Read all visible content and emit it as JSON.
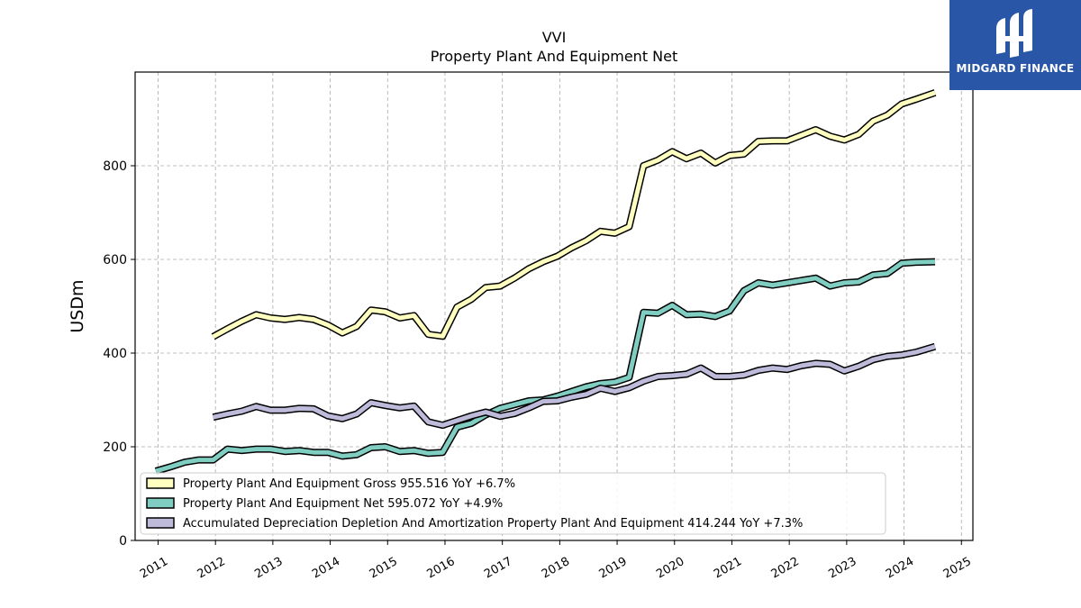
{
  "chart_data": {
    "type": "line",
    "title": "VVI",
    "subtitle": "Property Plant And Equipment Net",
    "ylabel": "USDm",
    "xlabel": "",
    "ylim": [
      0,
      1000
    ],
    "xlim": [
      2010.6,
      2025.2
    ],
    "yticks": [
      0,
      200,
      400,
      600,
      800
    ],
    "xticks": [
      "2011",
      "2012",
      "2013",
      "2014",
      "2015",
      "2016",
      "2017",
      "2018",
      "2019",
      "2020",
      "2021",
      "2022",
      "2023",
      "2024",
      "2025"
    ],
    "grid": true,
    "legend_position": "bottom-left",
    "series": [
      {
        "name": "Property Plant And Equipment Gross",
        "legend": "Property Plant And Equipment Gross  955.516 YoY +6.7%",
        "color": "#ffffbf",
        "points": [
          [
            2011.96,
            435
          ],
          [
            2012.21,
            452
          ],
          [
            2012.46,
            468
          ],
          [
            2012.71,
            482
          ],
          [
            2012.96,
            475
          ],
          [
            2013.21,
            472
          ],
          [
            2013.46,
            476
          ],
          [
            2013.71,
            472
          ],
          [
            2013.96,
            460
          ],
          [
            2014.21,
            443
          ],
          [
            2014.46,
            457
          ],
          [
            2014.71,
            492
          ],
          [
            2014.96,
            488
          ],
          [
            2015.21,
            475
          ],
          [
            2015.46,
            480
          ],
          [
            2015.71,
            440
          ],
          [
            2015.96,
            436
          ],
          [
            2016.21,
            498
          ],
          [
            2016.46,
            515
          ],
          [
            2016.71,
            540
          ],
          [
            2016.96,
            543
          ],
          [
            2017.21,
            560
          ],
          [
            2017.46,
            580
          ],
          [
            2017.71,
            595
          ],
          [
            2017.96,
            607
          ],
          [
            2018.21,
            625
          ],
          [
            2018.46,
            640
          ],
          [
            2018.71,
            660
          ],
          [
            2018.96,
            656
          ],
          [
            2019.21,
            670
          ],
          [
            2019.46,
            800
          ],
          [
            2019.71,
            812
          ],
          [
            2019.96,
            830
          ],
          [
            2020.21,
            815
          ],
          [
            2020.46,
            827
          ],
          [
            2020.71,
            806
          ],
          [
            2020.96,
            822
          ],
          [
            2021.21,
            825
          ],
          [
            2021.46,
            852
          ],
          [
            2021.71,
            853
          ],
          [
            2021.96,
            853
          ],
          [
            2022.21,
            865
          ],
          [
            2022.46,
            877
          ],
          [
            2022.71,
            863
          ],
          [
            2022.96,
            855
          ],
          [
            2023.21,
            867
          ],
          [
            2023.46,
            895
          ],
          [
            2023.71,
            908
          ],
          [
            2023.96,
            932
          ],
          [
            2024.21,
            942
          ],
          [
            2024.54,
            956
          ]
        ]
      },
      {
        "name": "Property Plant And Equipment Net",
        "legend": "Property Plant And Equipment Net  595.072 YoY +4.9%",
        "color": "#80cdc1",
        "points": [
          [
            2010.96,
            148
          ],
          [
            2011.21,
            157
          ],
          [
            2011.46,
            167
          ],
          [
            2011.71,
            172
          ],
          [
            2011.96,
            172
          ],
          [
            2012.21,
            195
          ],
          [
            2012.46,
            192
          ],
          [
            2012.71,
            195
          ],
          [
            2012.96,
            195
          ],
          [
            2013.21,
            190
          ],
          [
            2013.46,
            192
          ],
          [
            2013.71,
            188
          ],
          [
            2013.96,
            188
          ],
          [
            2014.21,
            180
          ],
          [
            2014.46,
            183
          ],
          [
            2014.71,
            198
          ],
          [
            2014.96,
            200
          ],
          [
            2015.21,
            190
          ],
          [
            2015.46,
            192
          ],
          [
            2015.71,
            186
          ],
          [
            2015.96,
            188
          ],
          [
            2016.21,
            242
          ],
          [
            2016.46,
            250
          ],
          [
            2016.71,
            268
          ],
          [
            2016.96,
            282
          ],
          [
            2017.21,
            290
          ],
          [
            2017.46,
            298
          ],
          [
            2017.71,
            300
          ],
          [
            2017.96,
            308
          ],
          [
            2018.21,
            318
          ],
          [
            2018.46,
            328
          ],
          [
            2018.71,
            335
          ],
          [
            2018.96,
            338
          ],
          [
            2019.21,
            348
          ],
          [
            2019.46,
            487
          ],
          [
            2019.71,
            485
          ],
          [
            2019.96,
            502
          ],
          [
            2020.21,
            482
          ],
          [
            2020.46,
            483
          ],
          [
            2020.71,
            478
          ],
          [
            2020.96,
            490
          ],
          [
            2021.21,
            533
          ],
          [
            2021.46,
            550
          ],
          [
            2021.71,
            545
          ],
          [
            2021.96,
            550
          ],
          [
            2022.21,
            555
          ],
          [
            2022.46,
            560
          ],
          [
            2022.71,
            543
          ],
          [
            2022.96,
            550
          ],
          [
            2023.21,
            552
          ],
          [
            2023.46,
            567
          ],
          [
            2023.71,
            570
          ],
          [
            2023.96,
            592
          ],
          [
            2024.21,
            594
          ],
          [
            2024.54,
            595
          ]
        ]
      },
      {
        "name": "Accumulated Depreciation Depletion And Amortization Property Plant And Equipment",
        "legend": "Accumulated Depreciation Depletion And Amortization Property Plant And Equipment  414.244 YoY +7.3%",
        "color": "#bebada",
        "points": [
          [
            2011.96,
            263
          ],
          [
            2012.21,
            270
          ],
          [
            2012.46,
            276
          ],
          [
            2012.71,
            286
          ],
          [
            2012.96,
            278
          ],
          [
            2013.21,
            278
          ],
          [
            2013.46,
            282
          ],
          [
            2013.71,
            281
          ],
          [
            2013.96,
            266
          ],
          [
            2014.21,
            260
          ],
          [
            2014.46,
            270
          ],
          [
            2014.71,
            294
          ],
          [
            2014.96,
            288
          ],
          [
            2015.21,
            283
          ],
          [
            2015.46,
            287
          ],
          [
            2015.71,
            253
          ],
          [
            2015.96,
            246
          ],
          [
            2016.21,
            256
          ],
          [
            2016.46,
            266
          ],
          [
            2016.71,
            274
          ],
          [
            2016.96,
            265
          ],
          [
            2017.21,
            271
          ],
          [
            2017.46,
            283
          ],
          [
            2017.71,
            297
          ],
          [
            2017.96,
            298
          ],
          [
            2018.21,
            306
          ],
          [
            2018.46,
            312
          ],
          [
            2018.71,
            325
          ],
          [
            2018.96,
            318
          ],
          [
            2019.21,
            326
          ],
          [
            2019.46,
            340
          ],
          [
            2019.71,
            350
          ],
          [
            2019.96,
            352
          ],
          [
            2020.21,
            355
          ],
          [
            2020.46,
            368
          ],
          [
            2020.71,
            350
          ],
          [
            2020.96,
            350
          ],
          [
            2021.21,
            353
          ],
          [
            2021.46,
            363
          ],
          [
            2021.71,
            368
          ],
          [
            2021.96,
            365
          ],
          [
            2022.21,
            373
          ],
          [
            2022.46,
            378
          ],
          [
            2022.71,
            376
          ],
          [
            2022.96,
            362
          ],
          [
            2023.21,
            372
          ],
          [
            2023.46,
            386
          ],
          [
            2023.71,
            393
          ],
          [
            2023.96,
            396
          ],
          [
            2024.21,
            402
          ],
          [
            2024.54,
            414
          ]
        ]
      }
    ]
  },
  "logo": {
    "text": "MIDGARD FINANCE",
    "color": "#2a56a8"
  }
}
